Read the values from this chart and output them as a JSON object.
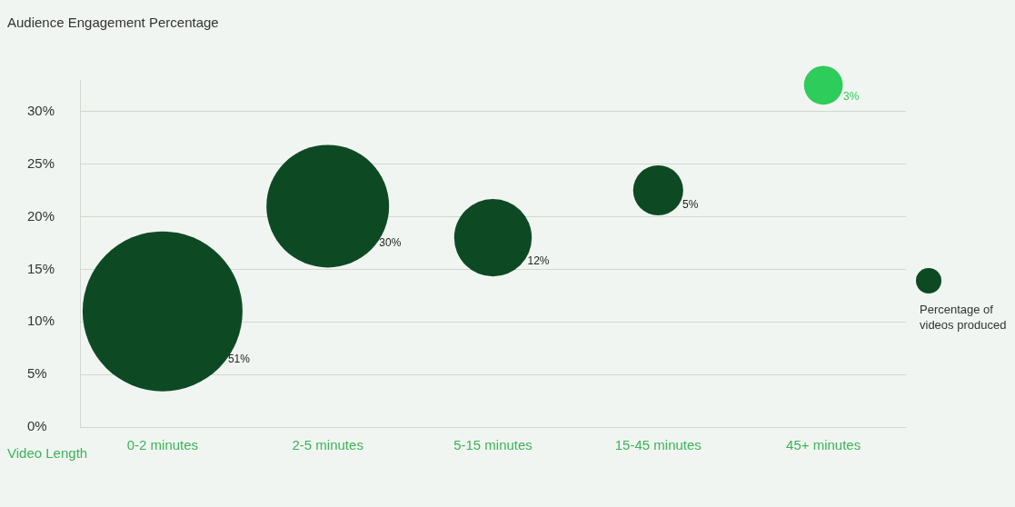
{
  "chart_data": {
    "type": "bubble",
    "ylabel": "Audience Engagement Percentage",
    "xlabel": "Video Length",
    "categories": [
      "0-2 minutes",
      "2-5 minutes",
      "5-15 minutes",
      "15-45 minutes",
      "45+ minutes"
    ],
    "series": [
      {
        "name": "Percentage of videos produced",
        "color": "#0d4a24",
        "colors": [
          "#0d4a24",
          "#0d4a24",
          "#0d4a24",
          "#0d4a24",
          "#2ecc5a"
        ],
        "values": [
          11,
          21,
          18,
          22.5,
          32.5
        ],
        "sizes": [
          51,
          30,
          12,
          5,
          3
        ],
        "value_labels": [
          "51%",
          "30%",
          "12%",
          "5%",
          "3%"
        ]
      }
    ],
    "ylim": [
      0,
      33
    ],
    "yticks": [
      {
        "value": 0,
        "label": "0%"
      },
      {
        "value": 5,
        "label": "5%"
      },
      {
        "value": 10,
        "label": "10%"
      },
      {
        "value": 15,
        "label": "15%"
      },
      {
        "value": 20,
        "label": "20%"
      },
      {
        "value": 25,
        "label": "25%"
      },
      {
        "value": 30,
        "label": "30%"
      }
    ],
    "grid": "y",
    "legend": "right"
  }
}
